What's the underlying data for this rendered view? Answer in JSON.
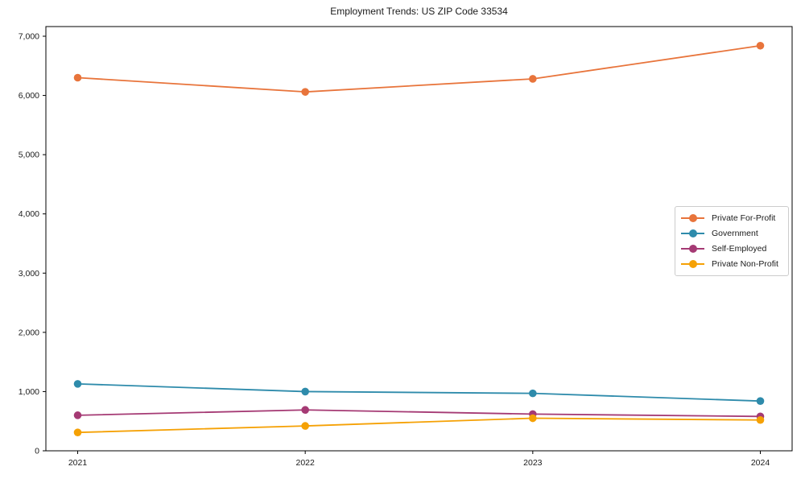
{
  "chart_data": {
    "type": "line",
    "title": "Employment Trends: US ZIP Code 33534",
    "xlabel": "",
    "ylabel": "",
    "x_labels": [
      "2021",
      "2022",
      "2023",
      "2024"
    ],
    "y_ticks": [
      0,
      1000,
      2000,
      3000,
      4000,
      5000,
      6000,
      7000
    ],
    "y_tick_labels": [
      "0",
      "1,000",
      "2,000",
      "3,000",
      "4,000",
      "5,000",
      "6,000",
      "7,000"
    ],
    "ylim": [
      0,
      7163
    ],
    "grid": false,
    "legend_position": "center-right",
    "axis_color": "#000000",
    "background_color": "#ffffff",
    "series": [
      {
        "name": "Private For-Profit",
        "color": "#e8743b",
        "values": [
          6300,
          6060,
          6280,
          6840
        ]
      },
      {
        "name": "Government",
        "color": "#2e8bab",
        "values": [
          1130,
          1000,
          970,
          840
        ]
      },
      {
        "name": "Self-Employed",
        "color": "#a53a74",
        "values": [
          600,
          690,
          620,
          580
        ]
      },
      {
        "name": "Private Non-Profit",
        "color": "#f5a105",
        "values": [
          310,
          420,
          550,
          520
        ]
      }
    ]
  }
}
